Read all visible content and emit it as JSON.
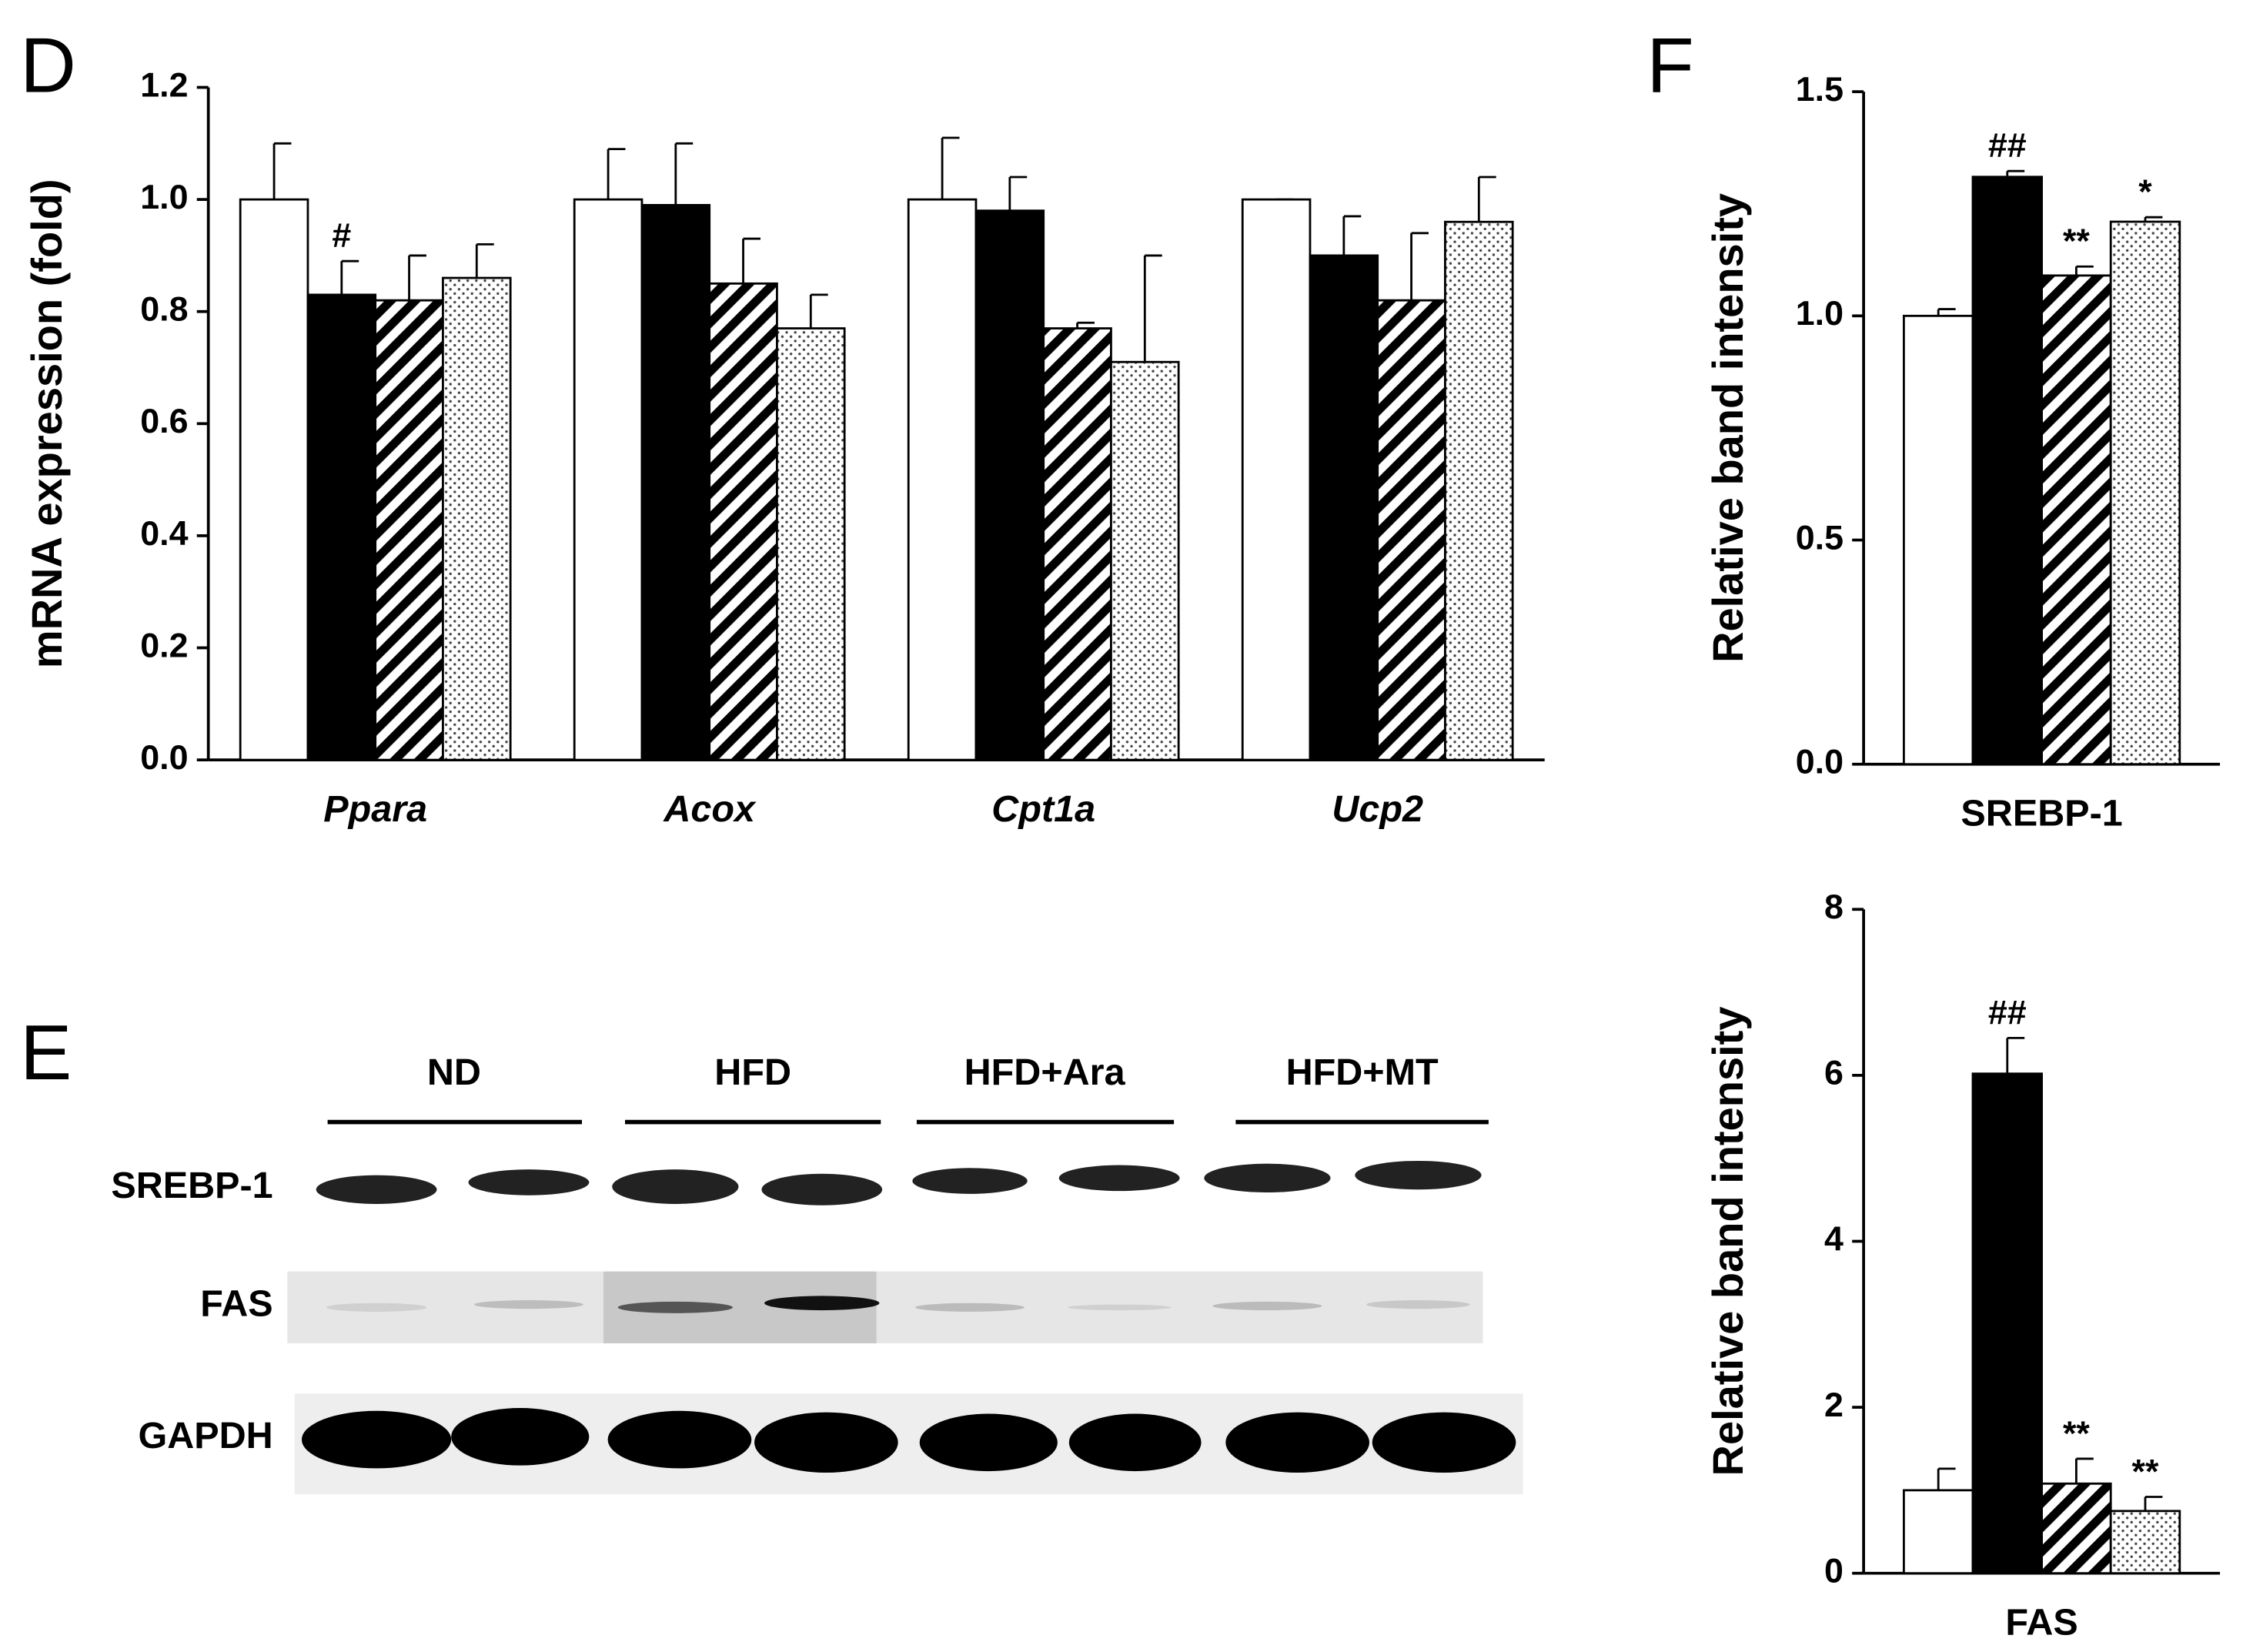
{
  "chart_data": [
    {
      "type": "bar",
      "panel_label": "D",
      "ylabel": "mRNA expression (fold)",
      "italic_categories": true,
      "categories": [
        "Ppara",
        "Acox",
        "Cpt1a",
        "Ucp2"
      ],
      "ylim": [
        0,
        1.2
      ],
      "yticks": [
        {
          "value": 0,
          "label": "0.0"
        },
        0.2,
        0.4,
        0.6,
        0.8,
        {
          "value": 1,
          "label": "1.0"
        },
        1.2
      ],
      "series": [
        {
          "pattern": "white",
          "values": [
            1.0,
            1.0,
            1.0,
            1.0
          ],
          "errors": [
            0.1,
            0.09,
            0.11,
            0
          ],
          "annotations": [
            null,
            null,
            null,
            null
          ]
        },
        {
          "pattern": "black",
          "values": [
            0.83,
            0.99,
            0.98,
            0.9
          ],
          "errors": [
            0.06,
            0.11,
            0.06,
            0.07
          ],
          "annotations": [
            "#",
            null,
            null,
            null
          ]
        },
        {
          "pattern": "hatch",
          "values": [
            0.82,
            0.85,
            0.77,
            0.82
          ],
          "errors": [
            0.08,
            0.08,
            0.01,
            0.12
          ],
          "annotations": [
            null,
            null,
            null,
            null
          ]
        },
        {
          "pattern": "dots",
          "values": [
            0.86,
            0.77,
            0.71,
            0.96
          ],
          "errors": [
            0.06,
            0.06,
            0.19,
            0.08
          ],
          "annotations": [
            null,
            null,
            null,
            null
          ]
        }
      ]
    },
    {
      "type": "bar",
      "panel_label": "F",
      "ylabel": "Relative band intensity",
      "italic_categories": false,
      "categories": [
        "SREBP-1"
      ],
      "ylim": [
        0,
        1.5
      ],
      "yticks": [
        {
          "value": 0,
          "label": "0.0"
        },
        0.5,
        {
          "value": 1,
          "label": "1.0"
        },
        1.5
      ],
      "series": [
        {
          "pattern": "white",
          "values": [
            1.0
          ],
          "errors": [
            0.015
          ],
          "annotations": [
            null
          ]
        },
        {
          "pattern": "black",
          "values": [
            1.31
          ],
          "errors": [
            0.013
          ],
          "annotations": [
            "##"
          ]
        },
        {
          "pattern": "hatch",
          "values": [
            1.09
          ],
          "errors": [
            0.02
          ],
          "annotations": [
            "**"
          ]
        },
        {
          "pattern": "dots",
          "values": [
            1.21
          ],
          "errors": [
            0.01
          ],
          "annotations": [
            "*"
          ]
        }
      ]
    },
    {
      "type": "bar",
      "ylabel": "Relative band intensity",
      "italic_categories": false,
      "categories": [
        "FAS"
      ],
      "ylim": [
        0,
        8
      ],
      "yticks": [
        0,
        2,
        4,
        6,
        8
      ],
      "series": [
        {
          "pattern": "white",
          "values": [
            1.0
          ],
          "errors": [
            0.26
          ],
          "annotations": [
            null
          ]
        },
        {
          "pattern": "black",
          "values": [
            6.02
          ],
          "errors": [
            0.43
          ],
          "annotations": [
            "##"
          ]
        },
        {
          "pattern": "hatch",
          "values": [
            1.08
          ],
          "errors": [
            0.3
          ],
          "annotations": [
            "**"
          ]
        },
        {
          "pattern": "dots",
          "values": [
            0.75
          ],
          "errors": [
            0.17
          ],
          "annotations": [
            "**"
          ]
        }
      ]
    }
  ],
  "blot": {
    "panel_label": "E",
    "groups": [
      "ND",
      "HFD",
      "HFD+Ara",
      "HFD+MT"
    ],
    "rows": [
      "SREBP-1",
      "FAS",
      "GAPDH"
    ]
  }
}
